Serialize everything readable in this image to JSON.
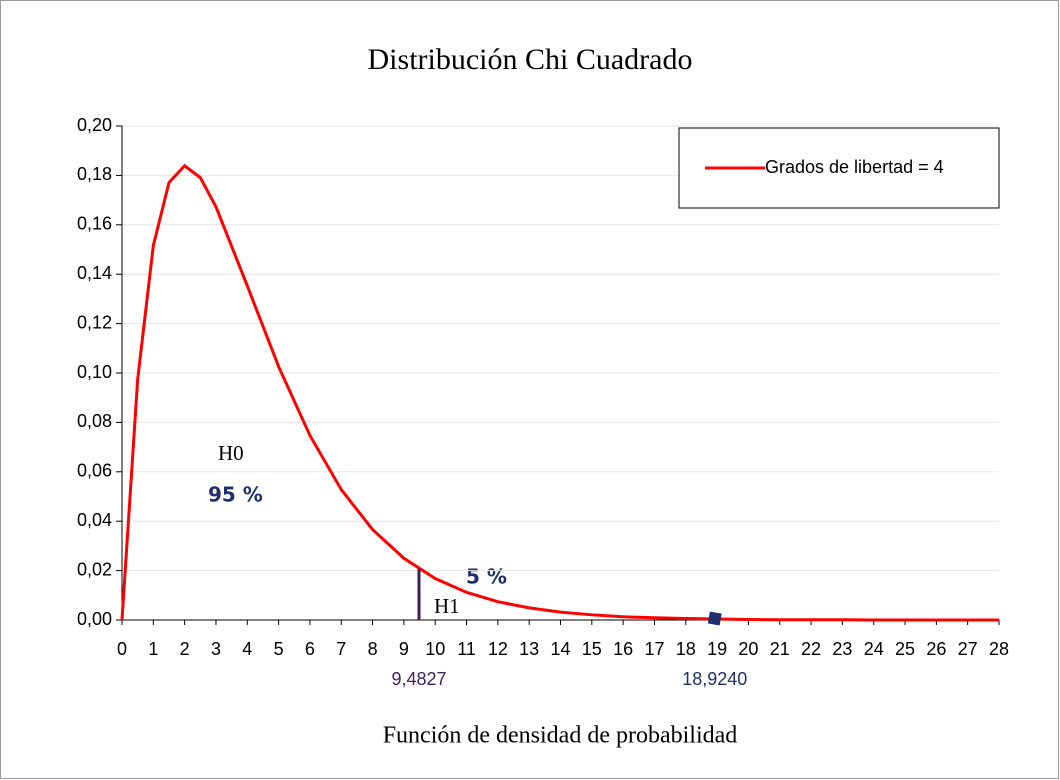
{
  "chart_data": {
    "type": "line",
    "title": "Distribución Chi Cuadrado",
    "x_label": "Función de densidad de probabilidad",
    "x": [
      0,
      0.5,
      1,
      1.5,
      2,
      2.5,
      3,
      4,
      5,
      6,
      7,
      8,
      9,
      10,
      11,
      12,
      13,
      14,
      15,
      16,
      17,
      18,
      19,
      20,
      21,
      22,
      23,
      24,
      25,
      26,
      27,
      28
    ],
    "series": [
      {
        "name": "Grados de libertad = 4",
        "color": "#ff0000",
        "values": [
          0,
          0.0974,
          0.1516,
          0.1771,
          0.1839,
          0.1791,
          0.1673,
          0.1353,
          0.1026,
          0.0747,
          0.0528,
          0.0366,
          0.025,
          0.0168,
          0.0112,
          0.0074,
          0.0049,
          0.0032,
          0.0021,
          0.0013,
          0.0009,
          0.0006,
          0.0004,
          0.0002,
          0.0001,
          0.0001,
          0.0001,
          0,
          0,
          0,
          0,
          0
        ]
      }
    ],
    "xlim": [
      0,
      28
    ],
    "xticks": [
      0,
      1,
      2,
      3,
      4,
      5,
      6,
      7,
      8,
      9,
      10,
      11,
      12,
      13,
      14,
      15,
      16,
      17,
      18,
      19,
      20,
      21,
      22,
      23,
      24,
      25,
      26,
      27,
      28
    ],
    "ylim": [
      0,
      0.2
    ],
    "yticks": [
      {
        "value": 0,
        "label": "0,00"
      },
      {
        "value": 0.02,
        "label": "0,02"
      },
      {
        "value": 0.04,
        "label": "0,04"
      },
      {
        "value": 0.06,
        "label": "0,06"
      },
      {
        "value": 0.08,
        "label": "0,08"
      },
      {
        "value": 0.1,
        "label": "0,10"
      },
      {
        "value": 0.12,
        "label": "0,12"
      },
      {
        "value": 0.14,
        "label": "0,14"
      },
      {
        "value": 0.16,
        "label": "0,16"
      },
      {
        "value": 0.18,
        "label": "0,18"
      },
      {
        "value": 0.2,
        "label": "0,20"
      }
    ],
    "grid": true,
    "legend": "upper right",
    "critical": [
      {
        "x": 9.4827,
        "y": 0.0207,
        "label": "9,4827",
        "color": "#3b1f5c"
      },
      {
        "x": 18.924,
        "y": 0.0006,
        "label": "18,9240",
        "color": "#1f2f6b"
      }
    ],
    "annotations": [
      "H0",
      "95 %",
      "5 %",
      "H1"
    ]
  }
}
